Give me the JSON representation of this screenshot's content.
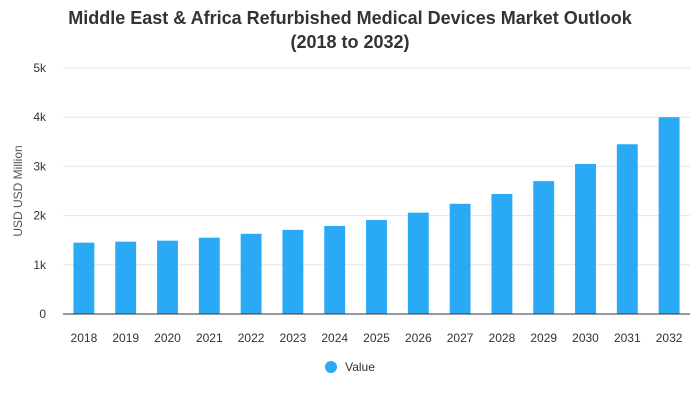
{
  "chart_data": {
    "type": "bar",
    "title_line1": "Middle East & Africa Refurbished Medical Devices Market Outlook",
    "title_line2": "(2018 to 2032)",
    "xlabel": "",
    "ylabel": "USD USD Million",
    "ylim": [
      0,
      5000
    ],
    "yticks": [
      0,
      1000,
      2000,
      3000,
      4000,
      5000
    ],
    "ytick_labels": [
      "0",
      "1k",
      "2k",
      "3k",
      "4k",
      "5k"
    ],
    "grid": true,
    "legend_position": "bottom",
    "categories": [
      "2018",
      "2019",
      "2020",
      "2021",
      "2022",
      "2023",
      "2024",
      "2025",
      "2026",
      "2027",
      "2028",
      "2029",
      "2030",
      "2031",
      "2032"
    ],
    "series": [
      {
        "name": "Value",
        "color": "#2aaaf5",
        "values": [
          1450,
          1470,
          1490,
          1550,
          1630,
          1710,
          1790,
          1910,
          2060,
          2240,
          2440,
          2700,
          3050,
          3450,
          4000
        ]
      }
    ]
  }
}
